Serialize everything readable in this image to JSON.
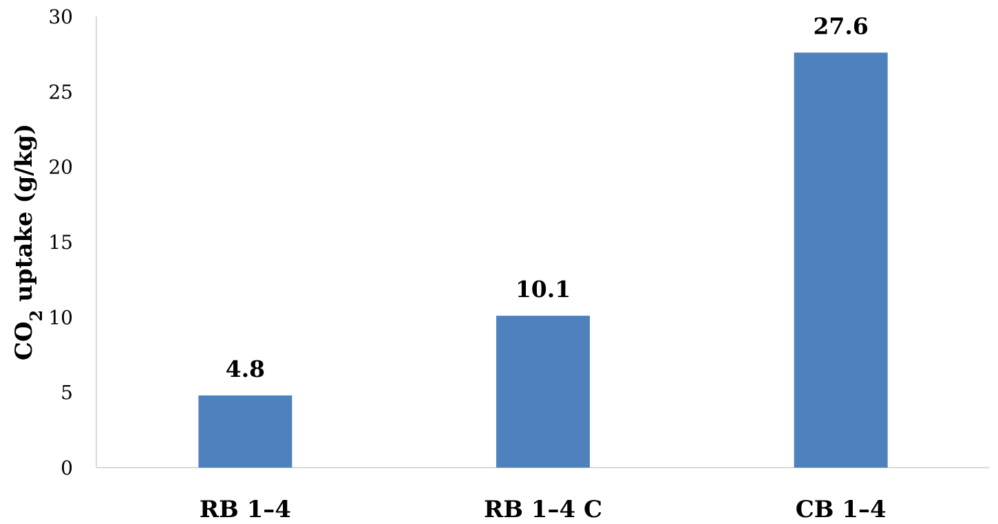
{
  "chart_data": {
    "type": "bar",
    "categories": [
      "RB 1–4",
      "RB 1–4 C",
      "CB 1–4"
    ],
    "values": [
      4.8,
      10.1,
      27.6
    ],
    "data_labels": [
      "4.8",
      "10.1",
      "27.6"
    ],
    "title": "",
    "xlabel": "",
    "ylabel": {
      "prefix": "CO",
      "subscript": "2",
      "suffix": " uptake (g/kg)"
    },
    "ylim": [
      0,
      30
    ],
    "yticks": [
      0,
      5,
      10,
      15,
      20,
      25,
      30
    ],
    "grid": false,
    "bar_color": "#4f81bd",
    "axis_color": "#d9d9d9"
  }
}
